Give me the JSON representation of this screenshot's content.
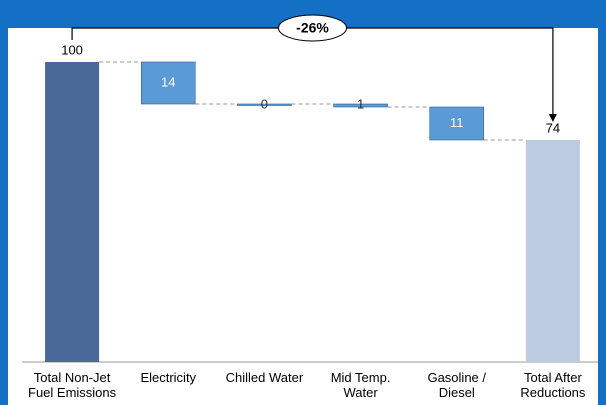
{
  "chart_data": {
    "type": "waterfall",
    "annotation": "-26%",
    "categories": [
      "Total Non-Jet Fuel Emissions",
      "Electricity",
      "Chilled Water",
      "Mid Temp. Water",
      "Gasoline / Diesel",
      "Total After Reductions"
    ],
    "values": [
      100,
      14,
      0,
      1,
      11,
      74
    ],
    "colors": [
      "#4a6998",
      "#5b9bd5",
      "#5b9bd5",
      "#5b9bd5",
      "#5b9bd5",
      "#bccbe0"
    ]
  }
}
